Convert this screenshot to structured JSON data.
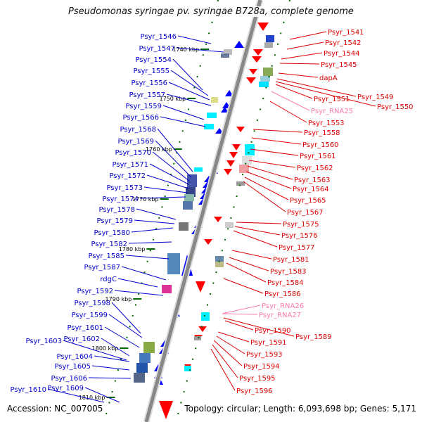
{
  "title": "Pseudomonas syringae pv. syringae B728a, complete genome",
  "accession_text": "Accession: NC_007005",
  "topology_text": "Topology: circular; Length: 6,093,698 bp; Genes: 5,171",
  "colors": {
    "left_label": "#0000cc",
    "right_label": "#dd0000",
    "rna_label": "#ff7ab0",
    "forward_feature": "#0000ff",
    "reverse_feature": "#ff0000",
    "backbone": "#888888",
    "tick": "#006600"
  },
  "ticks": [
    "1740 kbp",
    "1750 kbp",
    "1760 kbp",
    "1770 kbp",
    "1780 kbp",
    "1790 kbp",
    "1800 kbp",
    "1810 kbp"
  ],
  "left_labels": [
    "Psyr_1546",
    "Psyr_1547",
    "Psyr_1554",
    "Psyr_1555",
    "Psyr_1556",
    "Psyr_1557",
    "Psyr_1559",
    "Psyr_1566",
    "Psyr_1568",
    "Psyr_1569",
    "Psyr_1570",
    "Psyr_1571",
    "Psyr_1572",
    "Psyr_1573",
    "Psyr_1574",
    "Psyr_1578",
    "Psyr_1579",
    "Psyr_1580",
    "Psyr_1582",
    "Psyr_1585",
    "Psyr_1587",
    "rdgC",
    "Psyr_1592",
    "Psyr_1598",
    "Psyr_1599",
    "Psyr_1601",
    "Psyr_1603",
    "Psyr_1602",
    "Psyr_1604",
    "Psyr_1605",
    "Psyr_1606",
    "Psyr_1610",
    "Psyr_1609"
  ],
  "right_labels": [
    "Psyr_1541",
    "Psyr_1542",
    "Psyr_1544",
    "Psyr_1545",
    "dapA",
    "Psyr_1549",
    "Psyr_1551",
    "Psyr_1550",
    "Psyr_RNA25",
    "Psyr_1553",
    "Psyr_1558",
    "Psyr_1560",
    "Psyr_1561",
    "Psyr_1562",
    "Psyr_1563",
    "Psyr_1564",
    "Psyr_1565",
    "Psyr_1567",
    "Psyr_1575",
    "Psyr_1576",
    "Psyr_1577",
    "Psyr_1581",
    "Psyr_1583",
    "Psyr_1584",
    "Psyr_1586",
    "Psyr_RNA26",
    "Psyr_RNA27",
    "Psyr_1590",
    "Psyr_1589",
    "Psyr_1591",
    "Psyr_1593",
    "Psyr_1594",
    "Psyr_1595",
    "Psyr_1596"
  ]
}
